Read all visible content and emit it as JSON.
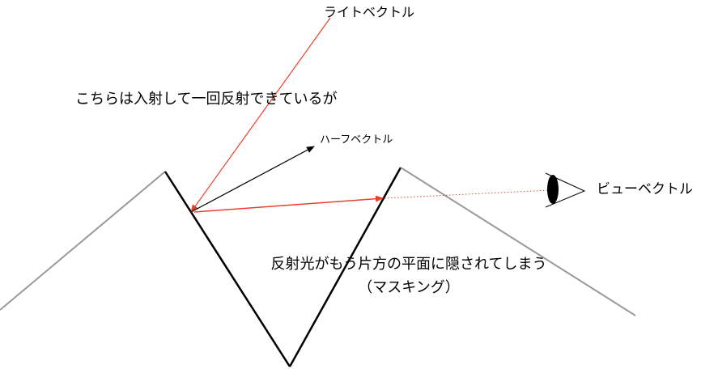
{
  "labels": {
    "light_vector": "ライトベクトル",
    "note": "こちらは入射して一回反射できているが",
    "half_vector": "ハーフベクトル",
    "view_vector": "ビューベクトル",
    "masking_line1": "反射光がもう片方の平面に隠されてしまう",
    "masking_line2": "（マスキング）"
  }
}
